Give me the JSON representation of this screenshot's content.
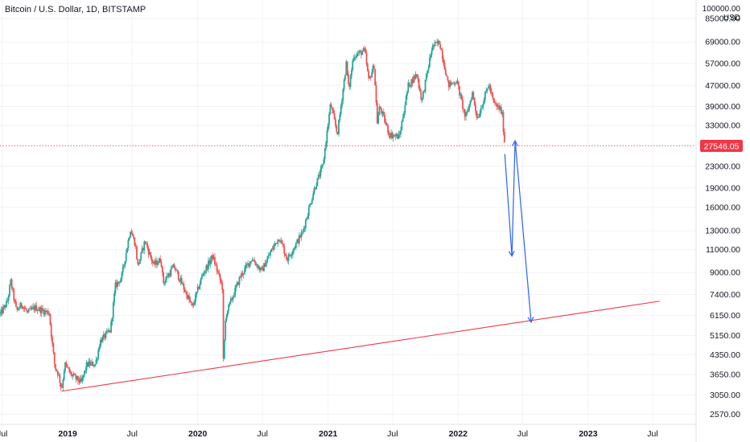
{
  "symbol_title": "Bitcoin / U.S. Dollar, 1D, BITSTAMP",
  "price_axis": {
    "unit_top": "100000.00",
    "unit_label": "USD",
    "current_price": "27546.05"
  },
  "colors": {
    "up_candle": "#26a69a",
    "down_candle": "#ef5350",
    "trendline": "#f23645",
    "projection_arrows": "#2962ff",
    "current_price_badge": "#f23645",
    "grid": "#f0f3fa",
    "axis_text": "#131722"
  },
  "chart_data": {
    "type": "candlestick",
    "title": "Bitcoin / U.S. Dollar, 1D, BITSTAMP",
    "y_scale": "log",
    "y_unit": "USD",
    "ylim": [
      2350,
      100000
    ],
    "xlim": [
      "2018-06-25",
      "2023-10-31"
    ],
    "grid": true,
    "y_ticks": [
      {
        "value": 85000,
        "label": "85000.00"
      },
      {
        "value": 69000,
        "label": "69000.00"
      },
      {
        "value": 57000,
        "label": "57000.00"
      },
      {
        "value": 47000,
        "label": "47000.00"
      },
      {
        "value": 39000,
        "label": "39000.00"
      },
      {
        "value": 33000,
        "label": "33000.00"
      },
      {
        "value": 23000,
        "label": "23000.00"
      },
      {
        "value": 19000,
        "label": "19000.00"
      },
      {
        "value": 16000,
        "label": "16000.00"
      },
      {
        "value": 13000,
        "label": "13000.00"
      },
      {
        "value": 11000,
        "label": "11000.00"
      },
      {
        "value": 9000,
        "label": "9000.00"
      },
      {
        "value": 7400,
        "label": "7400.00"
      },
      {
        "value": 6150,
        "label": "6150.00"
      },
      {
        "value": 5150,
        "label": "5150.00"
      },
      {
        "value": 4350,
        "label": "4350.00"
      },
      {
        "value": 3650,
        "label": "3650.00"
      },
      {
        "value": 3050,
        "label": "3050.00"
      },
      {
        "value": 2570,
        "label": "2570.00"
      }
    ],
    "x_ticks": [
      {
        "date": "2018-07-01",
        "label": "Jul",
        "bold": false
      },
      {
        "date": "2019-01-01",
        "label": "2019",
        "bold": true
      },
      {
        "date": "2019-07-01",
        "label": "Jul",
        "bold": false
      },
      {
        "date": "2020-01-01",
        "label": "2020",
        "bold": true
      },
      {
        "date": "2020-07-01",
        "label": "Jul",
        "bold": false
      },
      {
        "date": "2021-01-01",
        "label": "2021",
        "bold": true
      },
      {
        "date": "2021-07-01",
        "label": "Jul",
        "bold": false
      },
      {
        "date": "2022-01-01",
        "label": "2022",
        "bold": true
      },
      {
        "date": "2022-07-01",
        "label": "Jul",
        "bold": false
      },
      {
        "date": "2023-01-01",
        "label": "2023",
        "bold": true
      },
      {
        "date": "2023-07-01",
        "label": "Jul",
        "bold": false
      }
    ],
    "current_price": 27546.05,
    "price_path": [
      [
        "2018-06-25",
        6200
      ],
      [
        "2018-07-15",
        6900
      ],
      [
        "2018-07-25",
        8300
      ],
      [
        "2018-08-10",
        6400
      ],
      [
        "2018-08-25",
        6800
      ],
      [
        "2018-09-10",
        6300
      ],
      [
        "2018-10-01",
        6600
      ],
      [
        "2018-10-25",
        6400
      ],
      [
        "2018-11-10",
        6300
      ],
      [
        "2018-11-20",
        4600
      ],
      [
        "2018-11-26",
        3900
      ],
      [
        "2018-12-05",
        3700
      ],
      [
        "2018-12-15",
        3200
      ],
      [
        "2018-12-24",
        4000
      ],
      [
        "2019-01-10",
        3650
      ],
      [
        "2019-02-08",
        3400
      ],
      [
        "2019-02-24",
        4000
      ],
      [
        "2019-03-20",
        4000
      ],
      [
        "2019-04-02",
        4900
      ],
      [
        "2019-05-01",
        5400
      ],
      [
        "2019-05-15",
        8000
      ],
      [
        "2019-06-01",
        8600
      ],
      [
        "2019-06-26",
        13200
      ],
      [
        "2019-07-10",
        11500
      ],
      [
        "2019-07-17",
        9500
      ],
      [
        "2019-08-06",
        11900
      ],
      [
        "2019-08-30",
        9600
      ],
      [
        "2019-09-20",
        10100
      ],
      [
        "2019-09-26",
        8200
      ],
      [
        "2019-10-26",
        9500
      ],
      [
        "2019-11-20",
        8000
      ],
      [
        "2019-12-17",
        6600
      ],
      [
        "2020-01-14",
        8800
      ],
      [
        "2020-02-12",
        10400
      ],
      [
        "2020-03-10",
        7900
      ],
      [
        "2020-03-13",
        4100
      ],
      [
        "2020-03-20",
        6200
      ],
      [
        "2020-04-30",
        8700
      ],
      [
        "2020-06-01",
        10200
      ],
      [
        "2020-06-28",
        9100
      ],
      [
        "2020-07-27",
        11000
      ],
      [
        "2020-08-17",
        12300
      ],
      [
        "2020-09-08",
        10100
      ],
      [
        "2020-10-21",
        12800
      ],
      [
        "2020-11-24",
        19000
      ],
      [
        "2020-12-17",
        23000
      ],
      [
        "2021-01-08",
        40000
      ],
      [
        "2021-01-27",
        30500
      ],
      [
        "2021-02-21",
        57000
      ],
      [
        "2021-02-28",
        45000
      ],
      [
        "2021-03-13",
        61000
      ],
      [
        "2021-04-14",
        64000
      ],
      [
        "2021-04-25",
        49000
      ],
      [
        "2021-05-10",
        56000
      ],
      [
        "2021-05-19",
        34000
      ],
      [
        "2021-05-26",
        39000
      ],
      [
        "2021-06-22",
        30500
      ],
      [
        "2021-07-20",
        29800
      ],
      [
        "2021-08-14",
        47000
      ],
      [
        "2021-09-07",
        52000
      ],
      [
        "2021-09-21",
        41000
      ],
      [
        "2021-10-20",
        66000
      ],
      [
        "2021-11-10",
        69000
      ],
      [
        "2021-11-26",
        54000
      ],
      [
        "2021-12-04",
        47000
      ],
      [
        "2021-12-28",
        49000
      ],
      [
        "2022-01-22",
        35000
      ],
      [
        "2022-02-10",
        44000
      ],
      [
        "2022-02-24",
        35000
      ],
      [
        "2022-03-28",
        47500
      ],
      [
        "2022-04-11",
        40000
      ],
      [
        "2022-04-30",
        38000
      ],
      [
        "2022-05-05",
        36000
      ],
      [
        "2022-05-12",
        27546
      ]
    ],
    "annotations": [
      {
        "type": "trendline",
        "points": [
          [
            "2018-12-15",
            3150
          ],
          [
            "2020-03-13",
            3820
          ],
          [
            "2023-07-21",
            6980
          ]
        ]
      },
      {
        "type": "arrow-path",
        "points": [
          [
            "2022-05-12",
            25600
          ],
          [
            "2022-06-01",
            10400
          ],
          [
            "2022-06-10",
            28800
          ],
          [
            "2022-07-25",
            5800
          ]
        ]
      }
    ]
  }
}
